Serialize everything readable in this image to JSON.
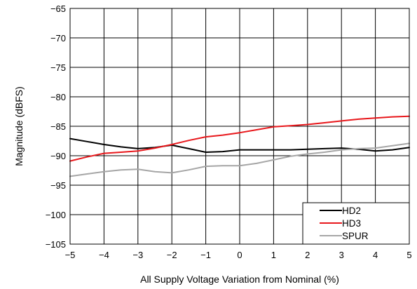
{
  "chart_data": {
    "type": "line",
    "xlabel": "All Supply Voltage Variation from Nominal (%)",
    "ylabel": "Magnitude (dBFS)",
    "xlim": [
      -5,
      5
    ],
    "ylim": [
      -105,
      -65
    ],
    "xticks": [
      -5,
      -4,
      -3,
      -2,
      -1,
      0,
      1,
      2,
      3,
      4,
      5
    ],
    "yticks": [
      -65,
      -70,
      -75,
      -80,
      -85,
      -90,
      -95,
      -100,
      -105
    ],
    "xtick_labels": [
      "−5",
      "−4",
      "−3",
      "−2",
      "−1",
      "0",
      "1",
      "2",
      "3",
      "4",
      "5"
    ],
    "ytick_labels": [
      "−65",
      "−70",
      "−75",
      "−80",
      "−85",
      "−90",
      "−95",
      "−100",
      "−105"
    ],
    "grid": true,
    "legend_position": "bottom-right",
    "series": [
      {
        "name": "HD2",
        "color": "#000000",
        "x": [
          -5,
          -4.5,
          -4,
          -3.5,
          -3,
          -2.5,
          -2,
          -1.5,
          -1,
          -0.5,
          0,
          0.5,
          1,
          1.5,
          2,
          2.5,
          3,
          3.5,
          4,
          4.5,
          5
        ],
        "y": [
          -87.1,
          -87.6,
          -88.1,
          -88.5,
          -88.8,
          -88.6,
          -88.2,
          -88.8,
          -89.4,
          -89.3,
          -89.0,
          -89.0,
          -89.0,
          -89.0,
          -88.9,
          -88.8,
          -88.7,
          -88.9,
          -89.2,
          -89.0,
          -88.6
        ]
      },
      {
        "name": "HD3",
        "color": "#e8181c",
        "x": [
          -5,
          -4.5,
          -4,
          -3.5,
          -3,
          -2.5,
          -2,
          -1.5,
          -1,
          -0.5,
          0,
          0.5,
          1,
          1.5,
          2,
          2.5,
          3,
          3.5,
          4,
          4.5,
          5
        ],
        "y": [
          -90.9,
          -90.2,
          -89.6,
          -89.4,
          -89.2,
          -88.7,
          -88.1,
          -87.4,
          -86.8,
          -86.5,
          -86.1,
          -85.6,
          -85.1,
          -84.9,
          -84.7,
          -84.4,
          -84.1,
          -83.8,
          -83.6,
          -83.4,
          -83.3
        ]
      },
      {
        "name": "SPUR",
        "color": "#a6a6a6",
        "x": [
          -5,
          -4.5,
          -4,
          -3.5,
          -3,
          -2.5,
          -2,
          -1.5,
          -1,
          -0.5,
          0,
          0.5,
          1,
          1.5,
          2,
          2.5,
          3,
          3.5,
          4,
          4.5,
          5
        ],
        "y": [
          -93.5,
          -93.1,
          -92.7,
          -92.4,
          -92.3,
          -92.7,
          -92.9,
          -92.4,
          -91.8,
          -91.7,
          -91.7,
          -91.3,
          -90.7,
          -90.1,
          -89.7,
          -89.4,
          -89.0,
          -88.8,
          -88.7,
          -88.3,
          -87.9
        ]
      }
    ]
  }
}
